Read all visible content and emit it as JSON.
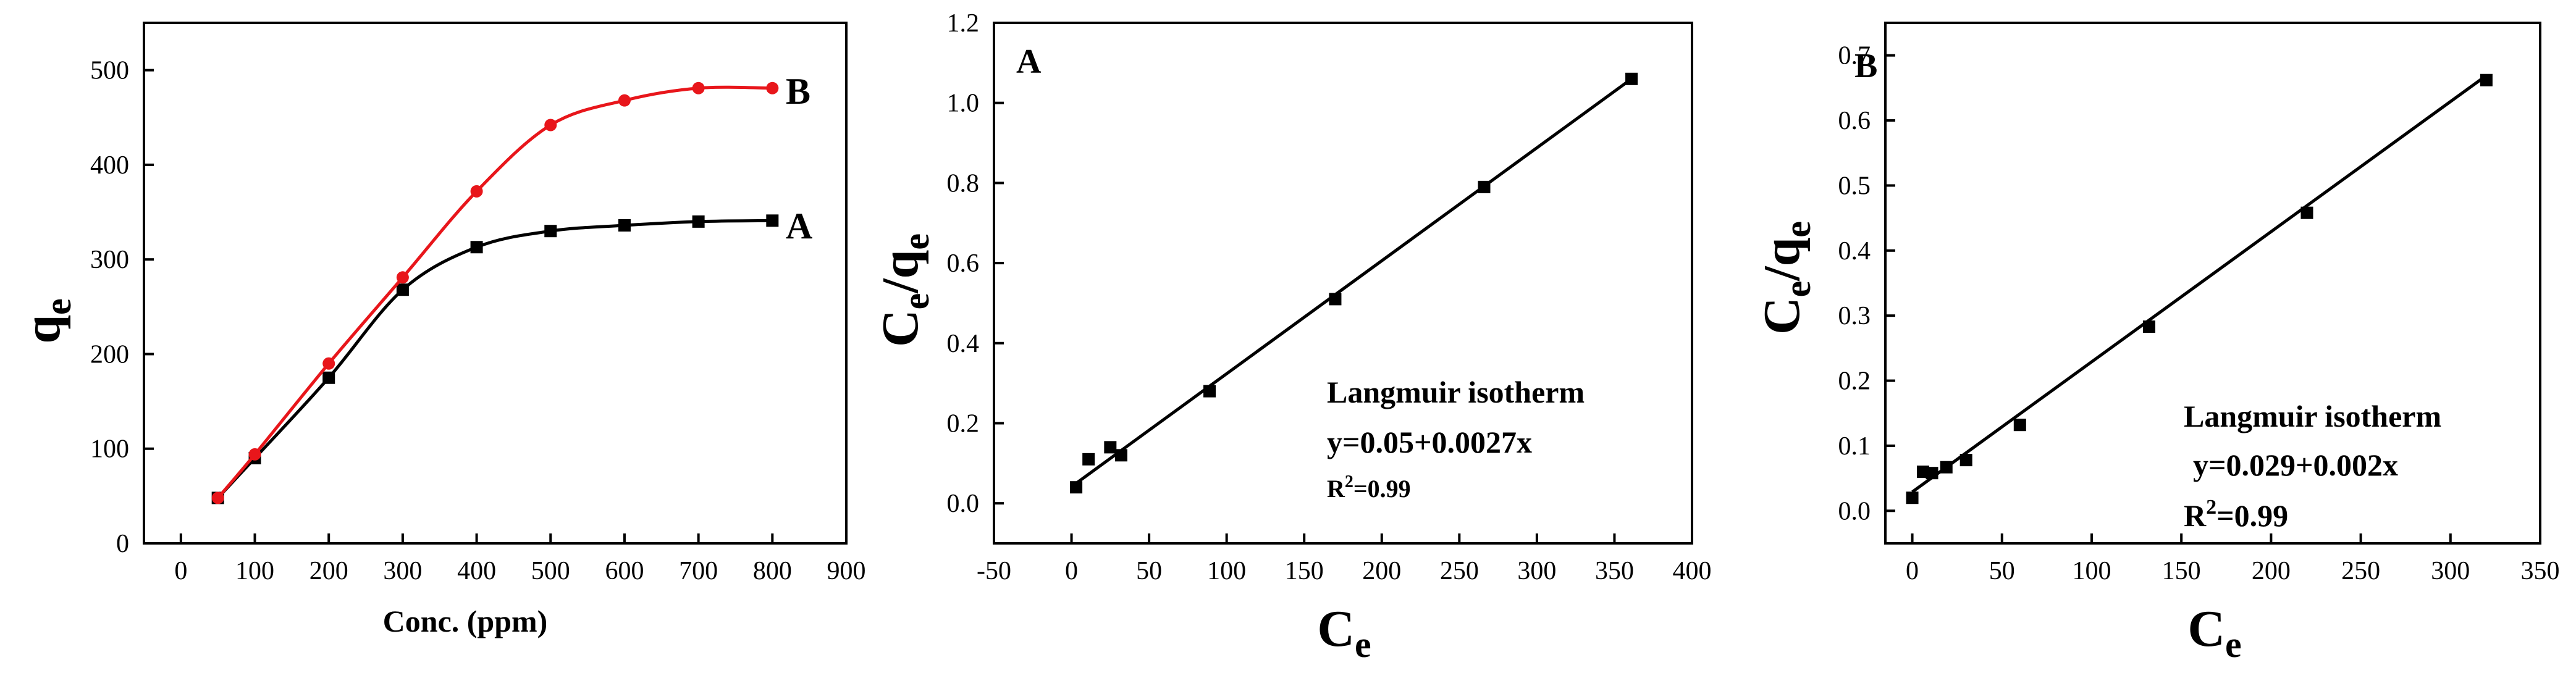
{
  "chart_data": [
    {
      "type": "line",
      "title": "",
      "xlabel": "Conc. (ppm)",
      "ylabel": "q",
      "ylabel_sub": "e",
      "xlim": [
        -50,
        900
      ],
      "ylim": [
        0,
        550
      ],
      "xticks": [
        0,
        100,
        200,
        300,
        400,
        500,
        600,
        700,
        800,
        900
      ],
      "yticks": [
        0,
        100,
        200,
        300,
        400,
        500
      ],
      "grid": false,
      "series": [
        {
          "name": "A",
          "color": "#000000",
          "marker": "square",
          "x": [
            50,
            100,
            200,
            300,
            400,
            500,
            600,
            700,
            800
          ],
          "y": [
            48,
            90,
            175,
            268,
            313,
            330,
            336,
            340,
            341
          ]
        },
        {
          "name": "B",
          "color": "#e8161b",
          "marker": "circle",
          "x": [
            50,
            100,
            200,
            300,
            400,
            500,
            600,
            700,
            800
          ],
          "y": [
            48,
            94,
            190,
            281,
            372,
            442,
            468,
            481,
            481
          ]
        }
      ]
    },
    {
      "type": "scatter",
      "panel_label": "A",
      "title": "",
      "xlabel": "C",
      "xlabel_sub": "e",
      "ylabel": "C",
      "ylabel_sub": "e",
      "ylabel_mid": "/q",
      "ylabel_sub2": "e",
      "xlim": [
        -50,
        400
      ],
      "ylim": [
        -0.1,
        1.2
      ],
      "xticks": [
        -50,
        0,
        50,
        100,
        150,
        200,
        250,
        300,
        350,
        400
      ],
      "yticks": [
        0.0,
        0.2,
        0.4,
        0.6,
        0.8,
        1.0,
        1.2
      ],
      "ytick_labels": [
        "0.0",
        "0.2",
        "0.4",
        "0.6",
        "0.8",
        "1.0",
        "1.2"
      ],
      "grid": false,
      "points": {
        "x": [
          3,
          11,
          25,
          32,
          89,
          170,
          266,
          361
        ],
        "y": [
          0.04,
          0.11,
          0.14,
          0.12,
          0.28,
          0.51,
          0.79,
          1.06
        ]
      },
      "fit": {
        "x": [
          3,
          361
        ],
        "y": [
          0.05,
          1.06
        ]
      },
      "annotation": {
        "line1": "Langmuir isotherm",
        "line2": "y=0.05+0.0027x",
        "r2_base": "R",
        "r2_sup": "2",
        "r2_rest": "=0.99"
      }
    },
    {
      "type": "scatter",
      "panel_label": "B",
      "title": "",
      "xlabel": "C",
      "xlabel_sub": "e",
      "ylabel": "C",
      "ylabel_sub": "e",
      "ylabel_mid": "/q",
      "ylabel_sub2": "e",
      "xlim": [
        -15,
        350
      ],
      "ylim": [
        -0.05,
        0.75
      ],
      "xticks": [
        0,
        50,
        100,
        150,
        200,
        250,
        300,
        350
      ],
      "yticks": [
        0.0,
        0.1,
        0.2,
        0.3,
        0.4,
        0.5,
        0.6,
        0.7
      ],
      "ytick_labels": [
        "0.0",
        "0.1",
        "0.2",
        "0.3",
        "0.4",
        "0.5",
        "0.6",
        "0.7"
      ],
      "grid": false,
      "points": {
        "x": [
          0,
          6,
          11,
          19,
          30,
          60,
          132,
          220,
          320
        ],
        "y": [
          0.02,
          0.06,
          0.058,
          0.067,
          0.078,
          0.132,
          0.283,
          0.458,
          0.662
        ]
      },
      "fit": {
        "x": [
          0,
          320
        ],
        "y": [
          0.029,
          0.669
        ]
      },
      "annotation": {
        "line1": "Langmuir isotherm",
        "line2": "y=0.029+0.002x",
        "r2_base": "R",
        "r2_sup": "2",
        "r2_rest": "=0.99"
      }
    }
  ]
}
